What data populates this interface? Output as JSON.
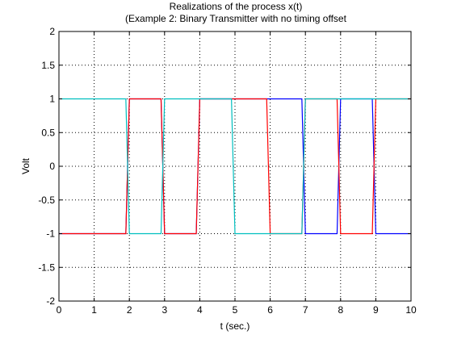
{
  "chart_data": {
    "type": "line",
    "title": "Realizations of the process x(t)",
    "subtitle": "(Example 2: Binary Transmitter with no timing offset",
    "xlabel": "t (sec.)",
    "ylabel": "Volt",
    "xlim": [
      0,
      10
    ],
    "ylim": [
      -2,
      2
    ],
    "x_ticks": [
      0,
      1,
      2,
      3,
      4,
      5,
      6,
      7,
      8,
      9,
      10
    ],
    "y_ticks": [
      -2,
      -1.5,
      -1,
      -0.5,
      0,
      0.5,
      1,
      1.5,
      2
    ],
    "x_tick_labels": [
      "0",
      "1",
      "2",
      "3",
      "4",
      "5",
      "6",
      "7",
      "8",
      "9",
      "10"
    ],
    "y_tick_labels": [
      "-2",
      "-1.5",
      "-1",
      "-0.5",
      "0",
      "0.5",
      "1",
      "1.5",
      "2"
    ],
    "grid": true,
    "grid_style": "dotted",
    "series": [
      {
        "color": "#0000ff",
        "x": [
          0,
          0.9,
          1.9,
          2,
          2.9,
          3,
          3.9,
          4,
          4.9,
          5,
          5.9,
          6,
          6.9,
          7,
          7.9,
          8,
          8.9,
          9,
          10
        ],
        "y": [
          -1,
          -1,
          -1,
          1,
          1,
          -1,
          -1,
          1,
          1,
          1,
          1,
          1,
          1,
          -1,
          -1,
          1,
          1,
          -1,
          -1
        ]
      },
      {
        "color": "#ff0000",
        "x": [
          0,
          0.9,
          1.9,
          2,
          2.9,
          3,
          3.9,
          4,
          4.9,
          5,
          5.9,
          6,
          6.9,
          7,
          7.9,
          8,
          8.9,
          9,
          10
        ],
        "y": [
          -1,
          -1,
          -1,
          1,
          1,
          -1,
          -1,
          1,
          1,
          1,
          1,
          -1,
          -1,
          1,
          1,
          -1,
          -1,
          1,
          1
        ]
      },
      {
        "color": "#00bfbf",
        "x": [
          0,
          0.9,
          1.9,
          2,
          2.9,
          3,
          3.9,
          4,
          4.9,
          5,
          5.9,
          6,
          6.9,
          7,
          7.9,
          8,
          8.9,
          9,
          10
        ],
        "y": [
          1,
          1,
          1,
          -1,
          -1,
          1,
          1,
          1,
          1,
          -1,
          -1,
          -1,
          -1,
          1,
          1,
          1,
          1,
          1,
          1
        ]
      }
    ]
  }
}
